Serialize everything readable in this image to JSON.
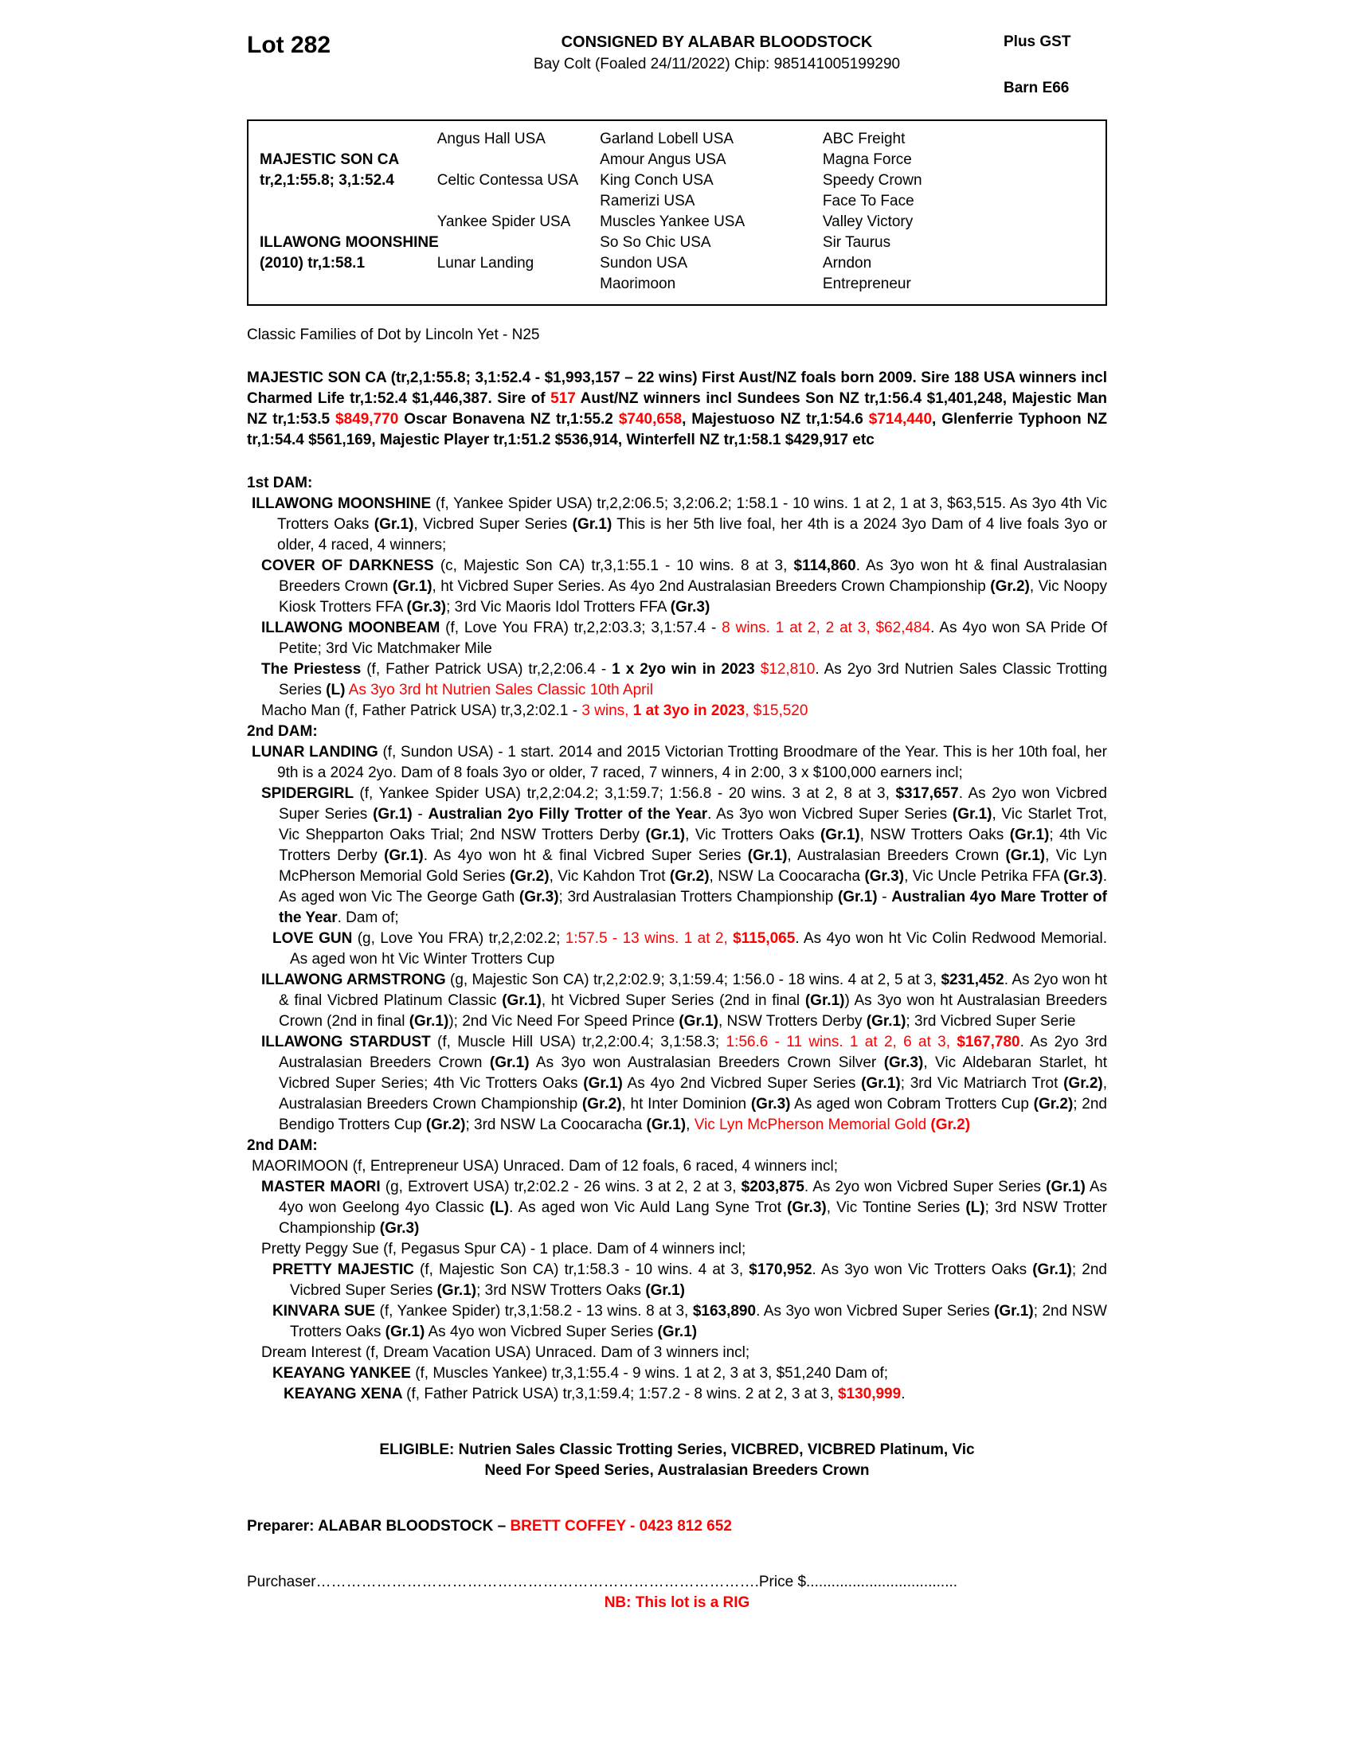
{
  "colors": {
    "red": "#fe0000",
    "text": "#000000",
    "page": "#ffffff"
  },
  "header": {
    "lot": "Lot 282",
    "consignor": "CONSIGNED BY ALABAR BLOODSTOCK",
    "description": "Bay Colt (Foaled 24/11/2022) Chip: 985141005199290",
    "gst": "Plus GST",
    "barn": "Barn E66"
  },
  "pedigree": {
    "rows": [
      [
        "",
        "Angus Hall USA",
        "Garland Lobell USA",
        "ABC Freight"
      ],
      [
        "MAJESTIC SON CA",
        "",
        "Amour Angus USA",
        "Magna Force"
      ],
      [
        "tr,2,1:55.8; 3,1:52.4",
        "Celtic Contessa USA",
        "King Conch USA",
        "Speedy Crown"
      ],
      [
        "",
        "",
        "Ramerizi USA",
        "Face To Face"
      ],
      [
        "",
        "Yankee Spider USA",
        "Muscles Yankee USA",
        "Valley Victory"
      ],
      [
        "ILLAWONG MOONSHINE",
        "",
        "So So Chic USA",
        "Sir Taurus"
      ],
      [
        "(2010) tr,1:58.1",
        "Lunar Landing",
        "Sundon USA",
        "Arndon"
      ],
      [
        "",
        "",
        "Maorimoon",
        "Entrepreneur"
      ]
    ]
  },
  "paragraphs": [
    {
      "name": "family-note",
      "level": 0,
      "align": "left",
      "gap": "md",
      "segments": [
        {
          "t": "Classic Families of Dot by Lincoln Yet - N25"
        }
      ]
    },
    {
      "name": "sire-summary",
      "level": 0,
      "gap": "lg",
      "segments": [
        {
          "t": "MAJESTIC SON CA (tr,2,1:55.8; 3,1:52.4 - $1,993,157 – 22 wins) First Aust/NZ foals born 2009. Sire 188 USA winners incl Charmed Life tr,1:52.4 $1,446,387. Sire of ",
          "b": true
        },
        {
          "t": "517",
          "b": true,
          "r": true
        },
        {
          "t": " Aust/NZ winners incl Sundees Son NZ tr,1:56.4 $1,401,248, Majestic Man NZ tr,1:53.5 ",
          "b": true
        },
        {
          "t": "$849,770",
          "b": true,
          "r": true
        },
        {
          "t": " Oscar Bonavena NZ tr,1:55.2 ",
          "b": true
        },
        {
          "t": "$740,658",
          "b": true,
          "r": true
        },
        {
          "t": ", Majestuoso NZ tr,1:54.6 ",
          "b": true
        },
        {
          "t": "$714,440",
          "b": true,
          "r": true
        },
        {
          "t": ", Glenferrie Typhoon NZ tr,1:54.4 $561,169, Majestic Player tr,1:51.2 $536,914, Winterfell NZ tr,1:58.1 $429,917 etc",
          "b": true
        }
      ]
    },
    {
      "name": "first-dam-heading",
      "level": 0,
      "align": "left",
      "gap": "lg",
      "segments": [
        {
          "t": "1st DAM:",
          "b": true
        }
      ]
    },
    {
      "name": "illawong-moonshine",
      "level": 1,
      "segments": [
        {
          "t": "ILLAWONG MOONSHINE ",
          "b": true
        },
        {
          "t": "(f, Yankee Spider USA) tr,2,2:06.5; 3,2:06.2; 1:58.1 - 10 wins. 1 at 2, 1 at 3, $63,515. As 3yo 4th Vic Trotters Oaks "
        },
        {
          "t": "(Gr.1)",
          "b": true
        },
        {
          "t": ", Vicbred Super Series "
        },
        {
          "t": "(Gr.1)",
          "b": true
        },
        {
          "t": " This is her 5th live foal, her 4th is a 2024 3yo Dam of 4 live foals 3yo or older, 4 raced, 4 winners;"
        }
      ]
    },
    {
      "name": "cover-of-darkness",
      "level": 2,
      "segments": [
        {
          "t": "COVER OF DARKNESS ",
          "b": true
        },
        {
          "t": "(c, Majestic Son CA) tr,3,1:55.1 - 10 wins. 8 at 3, "
        },
        {
          "t": "$114,860",
          "b": true
        },
        {
          "t": ". As 3yo won ht & final Australasian Breeders Crown "
        },
        {
          "t": "(Gr.1)",
          "b": true
        },
        {
          "t": ", ht Vicbred Super Series. As 4yo 2nd Australasian Breeders Crown Championship "
        },
        {
          "t": "(Gr.2)",
          "b": true
        },
        {
          "t": ", Vic Noopy Kiosk Trotters FFA "
        },
        {
          "t": "(Gr.3)",
          "b": true
        },
        {
          "t": "; 3rd Vic Maoris Idol Trotters FFA "
        },
        {
          "t": "(Gr.3)",
          "b": true
        }
      ]
    },
    {
      "name": "illawong-moonbeam",
      "level": 2,
      "segments": [
        {
          "t": "ILLAWONG MOONBEAM ",
          "b": true
        },
        {
          "t": "(f, Love You FRA) tr,2,2:03.3; 3,1:57.4 - "
        },
        {
          "t": "8 wins. 1 at 2, 2 at 3, $62,484",
          "r": true
        },
        {
          "t": ". As 4yo won SA Pride Of Petite; 3rd Vic Matchmaker Mile"
        }
      ]
    },
    {
      "name": "the-priestess",
      "level": 2,
      "segments": [
        {
          "t": "The Priestess ",
          "b": true
        },
        {
          "t": "(f, Father Patrick USA) tr,2,2:06.4 - "
        },
        {
          "t": "1 x 2yo win in 2023",
          "b": true
        },
        {
          "t": " "
        },
        {
          "t": "$12,810",
          "r": true
        },
        {
          "t": ". As 2yo 3rd Nutrien Sales Classic Trotting Series "
        },
        {
          "t": "(L)",
          "b": true
        },
        {
          "t": " "
        },
        {
          "t": "As 3yo 3rd ht Nutrien Sales Classic 10th April",
          "r": true
        }
      ]
    },
    {
      "name": "macho-man",
      "level": 2,
      "segments": [
        {
          "t": "Macho Man (f, Father Patrick USA) tr,3,2:02.1 - "
        },
        {
          "t": "3 wins, ",
          "r": true
        },
        {
          "t": "1 at 3yo in 2023",
          "r": true,
          "b": true
        },
        {
          "t": ", $15,520",
          "r": true
        }
      ]
    },
    {
      "name": "second-dam-heading",
      "level": 0,
      "align": "left",
      "segments": [
        {
          "t": "2nd DAM:",
          "b": true
        }
      ]
    },
    {
      "name": "lunar-landing",
      "level": 1,
      "segments": [
        {
          "t": "LUNAR LANDING ",
          "b": true
        },
        {
          "t": "(f, Sundon USA) - 1 start. 2014 and 2015 Victorian Trotting Broodmare of the Year. This is her 10th foal, her 9th is a 2024 2yo. Dam of 8 foals 3yo or older, 7 raced, 7 winners, 4 in 2:00, 3 x $100,000 earners incl;"
        }
      ]
    },
    {
      "name": "spidergirl",
      "level": 2,
      "segments": [
        {
          "t": "SPIDERGIRL ",
          "b": true
        },
        {
          "t": "(f, Yankee Spider USA) tr,2,2:04.2; 3,1:59.7; 1:56.8 - 20 wins. 3 at 2, 8 at 3, "
        },
        {
          "t": "$317,657",
          "b": true
        },
        {
          "t": ". As 2yo won Vicbred Super Series "
        },
        {
          "t": "(Gr.1)",
          "b": true
        },
        {
          "t": " - "
        },
        {
          "t": "Australian 2yo Filly Trotter of the Year",
          "b": true
        },
        {
          "t": ". As 3yo won Vicbred Super Series "
        },
        {
          "t": "(Gr.1)",
          "b": true
        },
        {
          "t": ", Vic Starlet Trot, Vic Shepparton Oaks Trial; 2nd NSW Trotters Derby "
        },
        {
          "t": "(Gr.1)",
          "b": true
        },
        {
          "t": ", Vic Trotters Oaks "
        },
        {
          "t": "(Gr.1)",
          "b": true
        },
        {
          "t": ", NSW Trotters Oaks "
        },
        {
          "t": "(Gr.1)",
          "b": true
        },
        {
          "t": "; 4th Vic Trotters Derby "
        },
        {
          "t": "(Gr.1)",
          "b": true
        },
        {
          "t": ". As 4yo won ht & final Vicbred Super Series "
        },
        {
          "t": "(Gr.1)",
          "b": true
        },
        {
          "t": ", Australasian Breeders Crown "
        },
        {
          "t": "(Gr.1)",
          "b": true
        },
        {
          "t": ", Vic Lyn McPherson Memorial Gold Series "
        },
        {
          "t": "(Gr.2)",
          "b": true
        },
        {
          "t": ", Vic Kahdon Trot "
        },
        {
          "t": "(Gr.2)",
          "b": true
        },
        {
          "t": ", NSW La Coocaracha "
        },
        {
          "t": "(Gr.3)",
          "b": true
        },
        {
          "t": ", Vic Uncle Petrika FFA "
        },
        {
          "t": "(Gr.3)",
          "b": true
        },
        {
          "t": ". As aged won Vic The George Gath "
        },
        {
          "t": "(Gr.3)",
          "b": true
        },
        {
          "t": "; 3rd Australasian Trotters Championship "
        },
        {
          "t": "(Gr.1)",
          "b": true
        },
        {
          "t": " - "
        },
        {
          "t": "Australian 4yo Mare Trotter of the Year",
          "b": true
        },
        {
          "t": ". Dam of;"
        }
      ]
    },
    {
      "name": "love-gun",
      "level": 3,
      "segments": [
        {
          "t": "LOVE GUN ",
          "b": true
        },
        {
          "t": "(g, Love You FRA) tr,2,2:02.2; "
        },
        {
          "t": "1:57.5 - 13 wins. 1 at 2, ",
          "r": true
        },
        {
          "t": "$115,065",
          "r": true,
          "b": true
        },
        {
          "t": ". As 4yo won ht Vic Colin Redwood Memorial. As aged won ht Vic Winter Trotters Cup"
        }
      ]
    },
    {
      "name": "illawong-armstrong",
      "level": 2,
      "segments": [
        {
          "t": "ILLAWONG ARMSTRONG ",
          "b": true
        },
        {
          "t": "(g, Majestic Son CA) tr,2,2:02.9; 3,1:59.4; 1:56.0 - 18 wins. 4 at 2, 5 at 3, "
        },
        {
          "t": "$231,452",
          "b": true
        },
        {
          "t": ". As 2yo won ht & final Vicbred Platinum Classic "
        },
        {
          "t": "(Gr.1)",
          "b": true
        },
        {
          "t": ", ht Vicbred Super Series (2nd in final "
        },
        {
          "t": "(Gr.1)",
          "b": true
        },
        {
          "t": ") As 3yo won ht Australasian Breeders Crown (2nd in final "
        },
        {
          "t": "(Gr.1)",
          "b": true
        },
        {
          "t": "); 2nd Vic Need For Speed Prince "
        },
        {
          "t": "(Gr.1)",
          "b": true
        },
        {
          "t": ", NSW Trotters Derby "
        },
        {
          "t": "(Gr.1)",
          "b": true
        },
        {
          "t": "; 3rd Vicbred Super Serie"
        }
      ]
    },
    {
      "name": "illawong-stardust",
      "level": 2,
      "segments": [
        {
          "t": "ILLAWONG STARDUST ",
          "b": true
        },
        {
          "t": "(f, Muscle Hill USA) tr,2,2:00.4; 3,1:58.3; "
        },
        {
          "t": "1:56.6 - 11 wins. 1 at 2, 6 at 3, ",
          "r": true
        },
        {
          "t": "$167,780",
          "r": true,
          "b": true
        },
        {
          "t": ". As 2yo 3rd Australasian Breeders Crown "
        },
        {
          "t": "(Gr.1)",
          "b": true
        },
        {
          "t": " As 3yo won Australasian Breeders Crown Silver "
        },
        {
          "t": "(Gr.3)",
          "b": true
        },
        {
          "t": ", Vic Aldebaran Starlet, ht Vicbred Super Series; 4th Vic Trotters Oaks "
        },
        {
          "t": "(Gr.1)",
          "b": true
        },
        {
          "t": " As 4yo 2nd Vicbred Super Series "
        },
        {
          "t": "(Gr.1)",
          "b": true
        },
        {
          "t": "; 3rd Vic Matriarch Trot "
        },
        {
          "t": "(Gr.2)",
          "b": true
        },
        {
          "t": ", Australasian Breeders Crown Championship "
        },
        {
          "t": "(Gr.2)",
          "b": true
        },
        {
          "t": ", ht Inter Dominion "
        },
        {
          "t": "(Gr.3)",
          "b": true
        },
        {
          "t": " As aged won Cobram Trotters Cup "
        },
        {
          "t": "(Gr.2)",
          "b": true
        },
        {
          "t": "; 2nd Bendigo Trotters Cup "
        },
        {
          "t": "(Gr.2)",
          "b": true
        },
        {
          "t": "; 3rd NSW La Coocaracha "
        },
        {
          "t": "(Gr.1)",
          "b": true
        },
        {
          "t": ", "
        },
        {
          "t": "Vic Lyn McPherson Memorial Gold ",
          "r": true
        },
        {
          "t": "(Gr.2)",
          "r": true,
          "b": true
        }
      ]
    },
    {
      "name": "second-dam-heading-2",
      "level": 0,
      "align": "left",
      "segments": [
        {
          "t": "2nd DAM:",
          "b": true
        }
      ]
    },
    {
      "name": "maorimoon",
      "level": 1,
      "segments": [
        {
          "t": "MAORIMOON (f, Entrepreneur USA) Unraced. Dam of 12 foals, 6 raced, 4 winners incl;"
        }
      ]
    },
    {
      "name": "master-maori",
      "level": 2,
      "segments": [
        {
          "t": "MASTER MAORI ",
          "b": true
        },
        {
          "t": "(g, Extrovert USA) tr,2:02.2 - 26 wins. 3 at 2, 2 at 3, "
        },
        {
          "t": "$203,875",
          "b": true
        },
        {
          "t": ". As 2yo won Vicbred Super Series "
        },
        {
          "t": "(Gr.1)",
          "b": true
        },
        {
          "t": " As 4yo won Geelong 4yo Classic "
        },
        {
          "t": "(L)",
          "b": true
        },
        {
          "t": ". As aged won Vic Auld Lang Syne Trot "
        },
        {
          "t": "(Gr.3)",
          "b": true
        },
        {
          "t": ", Vic Tontine Series "
        },
        {
          "t": "(L)",
          "b": true
        },
        {
          "t": "; 3rd NSW Trotter Championship "
        },
        {
          "t": "(Gr.3)",
          "b": true
        }
      ]
    },
    {
      "name": "pretty-peggy-sue",
      "level": 2,
      "segments": [
        {
          "t": "Pretty Peggy Sue (f, Pegasus Spur CA) - 1 place. Dam of 4 winners incl;"
        }
      ]
    },
    {
      "name": "pretty-majestic",
      "level": 3,
      "segments": [
        {
          "t": "PRETTY MAJESTIC ",
          "b": true
        },
        {
          "t": "(f, Majestic Son CA) tr,1:58.3 - 10 wins. 4 at 3, "
        },
        {
          "t": "$170,952",
          "b": true
        },
        {
          "t": ". As 3yo won Vic Trotters Oaks "
        },
        {
          "t": "(Gr.1)",
          "b": true
        },
        {
          "t": "; 2nd Vicbred Super Series "
        },
        {
          "t": "(Gr.1)",
          "b": true
        },
        {
          "t": "; 3rd NSW Trotters Oaks "
        },
        {
          "t": "(Gr.1)",
          "b": true
        }
      ]
    },
    {
      "name": "kinvara-sue",
      "level": 3,
      "segments": [
        {
          "t": "KINVARA SUE ",
          "b": true
        },
        {
          "t": "(f, Yankee Spider) tr,3,1:58.2 - 13 wins. 8 at 3, "
        },
        {
          "t": "$163,890",
          "b": true
        },
        {
          "t": ". As 3yo won Vicbred Super Series "
        },
        {
          "t": "(Gr.1)",
          "b": true
        },
        {
          "t": "; 2nd NSW Trotters Oaks "
        },
        {
          "t": "(Gr.1)",
          "b": true
        },
        {
          "t": " As 4yo won Vicbred Super Series "
        },
        {
          "t": "(Gr.1)",
          "b": true
        }
      ]
    },
    {
      "name": "dream-interest",
      "level": 2,
      "segments": [
        {
          "t": "Dream Interest (f, Dream Vacation USA) Unraced. Dam of 3 winners incl;"
        }
      ]
    },
    {
      "name": "keayang-yankee",
      "level": 3,
      "segments": [
        {
          "t": "KEAYANG YANKEE ",
          "b": true
        },
        {
          "t": "(f, Muscles Yankee) tr,3,1:55.4 - 9 wins. 1 at 2, 3 at 3, $51,240 Dam of;"
        }
      ]
    },
    {
      "name": "keayang-xena",
      "level": 4,
      "segments": [
        {
          "t": "KEAYANG XENA ",
          "b": true
        },
        {
          "t": "(f, Father Patrick USA) tr,3,1:59.4; 1:57.2 - 8 wins. 2 at 2, 3 at 3, "
        },
        {
          "t": "$130,999",
          "r": true,
          "b": true
        },
        {
          "t": "."
        }
      ]
    },
    {
      "name": "eligible",
      "level": 0,
      "align": "center",
      "gap": "xl",
      "segments": [
        {
          "t": "ELIGIBLE: Nutrien Sales Classic Trotting Series, VICBRED, VICBRED Platinum, Vic",
          "b": true
        },
        {
          "br": true
        },
        {
          "t": "Need For Speed Series, Australasian Breeders Crown",
          "b": true
        }
      ]
    },
    {
      "name": "preparer",
      "level": 0,
      "align": "left",
      "gap": "xl",
      "segments": [
        {
          "t": "Preparer: ALABAR BLOODSTOCK – ",
          "b": true
        },
        {
          "t": "BRETT COFFEY - 0423 812 652",
          "r": true,
          "b": true
        }
      ]
    },
    {
      "name": "purchaser-line",
      "level": 0,
      "align": "left",
      "gap": "xl",
      "segments": [
        {
          "t": "Purchaser…………………………………………………………………………….Price $...................................."
        }
      ]
    },
    {
      "name": "nb-note",
      "level": 0,
      "align": "center",
      "segments": [
        {
          "t": "NB: This lot is a RIG",
          "r": true,
          "b": true
        }
      ]
    }
  ]
}
